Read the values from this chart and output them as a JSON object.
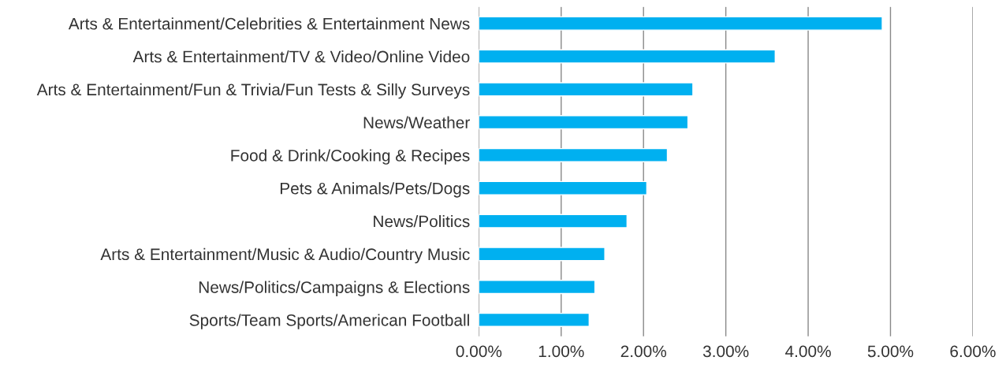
{
  "chart_data": {
    "type": "bar",
    "orientation": "horizontal",
    "categories": [
      "Arts & Entertainment/Celebrities & Entertainment News",
      "Arts & Entertainment/TV & Video/Online Video",
      "Arts & Entertainment/Fun & Trivia/Fun Tests & Silly Surveys",
      "News/Weather",
      "Food & Drink/Cooking & Recipes",
      "Pets & Animals/Pets/Dogs",
      "News/Politics",
      "Arts & Entertainment/Music & Audio/Country Music",
      "News/Politics/Campaigns & Elections",
      "Sports/Team Sports/American Football"
    ],
    "values": [
      4.9,
      3.6,
      2.6,
      2.54,
      2.29,
      2.04,
      1.8,
      1.53,
      1.41,
      1.34
    ],
    "color": "#00b0f0",
    "xlim": [
      0,
      6
    ],
    "xticks": [
      {
        "value": 0,
        "label": "0.00%"
      },
      {
        "value": 1,
        "label": "1.00%"
      },
      {
        "value": 2,
        "label": "2.00%"
      },
      {
        "value": 3,
        "label": "3.00%"
      },
      {
        "value": 4,
        "label": "4.00%"
      },
      {
        "value": 5,
        "label": "5.00%"
      },
      {
        "value": 6,
        "label": "6.00%"
      }
    ],
    "grid": "x",
    "legend": false
  }
}
